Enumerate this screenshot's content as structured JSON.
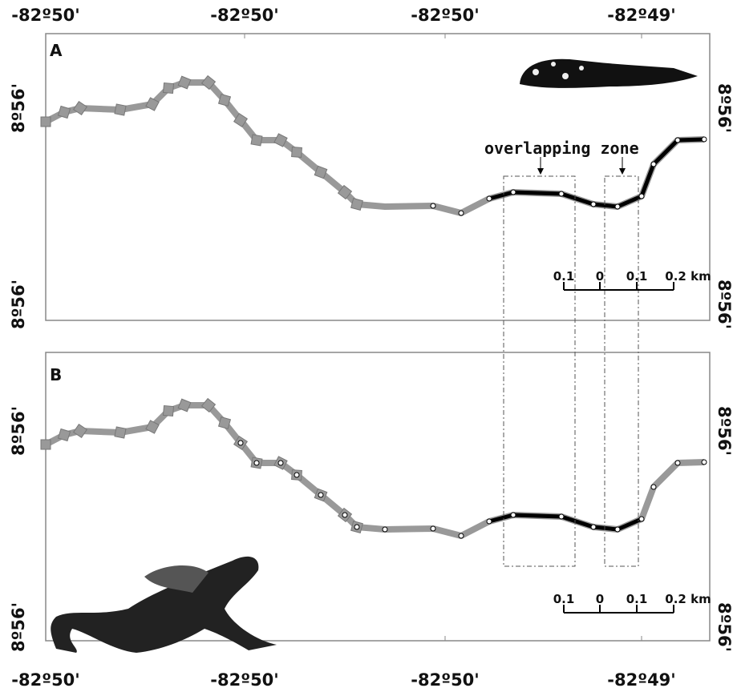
{
  "top_axis_labels": [
    "-82º50'",
    "-82º50'",
    "-82º50'",
    "-82º49'"
  ],
  "bottom_axis_labels": [
    "-82º50'",
    "-82º50'",
    "-82º50'",
    "-82º49'"
  ],
  "annotation": "overlapping zone",
  "panels": [
    {
      "label": "A",
      "left_labels": [
        "8º56'",
        "8º56'"
      ],
      "right_labels": [
        "8º56'",
        "8º56'"
      ],
      "scale_labels": [
        "0.1",
        "0",
        "0.1",
        "0.2 km"
      ]
    },
    {
      "label": "B",
      "left_labels": [
        "8º56'",
        "8º56'"
      ],
      "right_labels": [
        "8º56'",
        "8º56'"
      ],
      "scale_labels": [
        "0.1",
        "0",
        "0.1",
        "0.2 km"
      ]
    }
  ]
}
